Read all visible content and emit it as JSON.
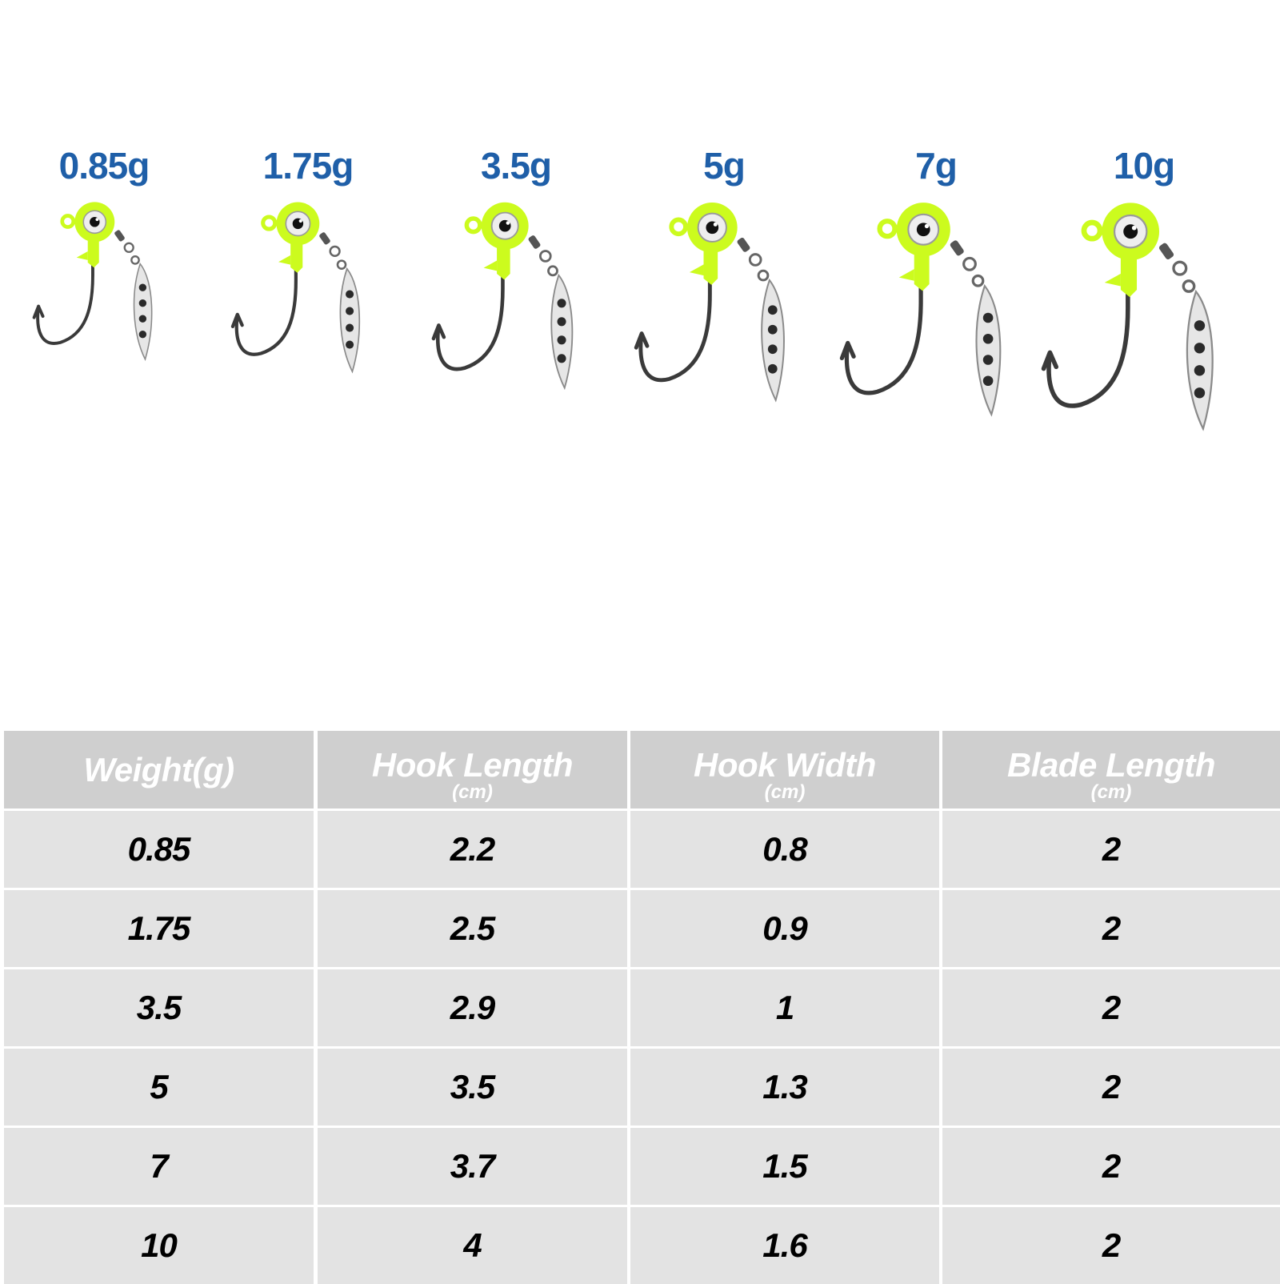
{
  "lures": [
    {
      "label": "0.85g",
      "size": 0.85
    },
    {
      "label": "1.75g",
      "size": 1.75
    },
    {
      "label": "3.5g",
      "size": 3.5
    },
    {
      "label": "5g",
      "size": 5
    },
    {
      "label": "7g",
      "size": 7
    },
    {
      "label": "10g",
      "size": 10
    }
  ],
  "colors": {
    "label_blue": "#1f5fa8",
    "jig_yellow": "#ccfb1e",
    "header_gray": "#cfcfcf",
    "row_gray": "#e3e3e3"
  },
  "table": {
    "headers": [
      {
        "main": "Weight(g)",
        "sub": ""
      },
      {
        "main": "Hook Length",
        "sub": "(cm)"
      },
      {
        "main": "Hook Width",
        "sub": "(cm)"
      },
      {
        "main": "Blade Length",
        "sub": "(cm)"
      }
    ],
    "rows": [
      [
        "0.85",
        "2.2",
        "0.8",
        "2"
      ],
      [
        "1.75",
        "2.5",
        "0.9",
        "2"
      ],
      [
        "3.5",
        "2.9",
        "1",
        "2"
      ],
      [
        "5",
        "3.5",
        "1.3",
        "2"
      ],
      [
        "7",
        "3.7",
        "1.5",
        "2"
      ],
      [
        "10",
        "4",
        "1.6",
        "2"
      ]
    ]
  }
}
